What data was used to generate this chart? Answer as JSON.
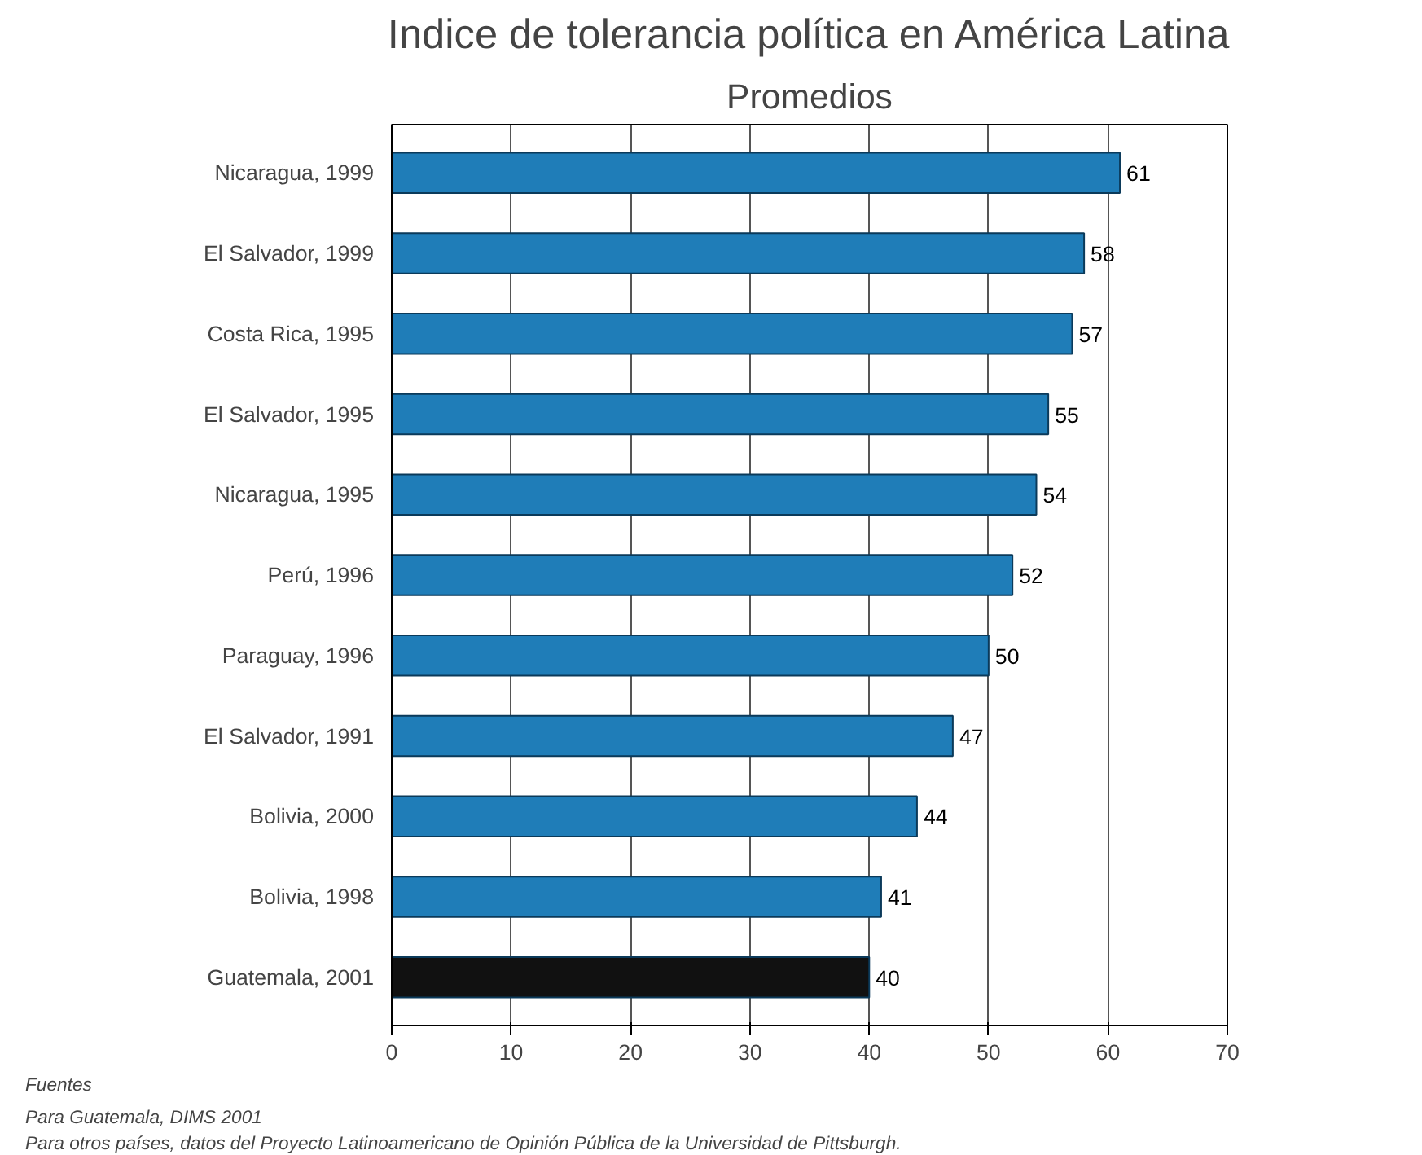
{
  "chart_data": {
    "type": "bar",
    "orientation": "horizontal",
    "title": "Indice de tolerancia política en América Latina",
    "subtitle": "Promedios",
    "categories": [
      "Nicaragua, 1999",
      "El Salvador, 1999",
      "Costa Rica, 1995",
      "El Salvador, 1995",
      "Nicaragua, 1995",
      "Perú, 1996",
      "Paraguay, 1996",
      "El Salvador, 1991",
      "Bolivia, 2000",
      "Bolivia, 1998",
      "Guatemala, 2001"
    ],
    "values": [
      61,
      58,
      57,
      55,
      54,
      52,
      50,
      47,
      44,
      41,
      40
    ],
    "colors": [
      "#1f7db8",
      "#1f7db8",
      "#1f7db8",
      "#1f7db8",
      "#1f7db8",
      "#1f7db8",
      "#1f7db8",
      "#1f7db8",
      "#1f7db8",
      "#1f7db8",
      "#111111"
    ],
    "xlim": [
      0,
      70
    ],
    "xticks": [
      0,
      10,
      20,
      30,
      40,
      50,
      60,
      70
    ],
    "grid": "x",
    "data_labels": true,
    "annotations": [
      "Fuentes",
      "Para Guatemala, DIMS 2001",
      "Para otros países, datos del Proyecto Latinoamericano de Opinión Pública de la Universidad de Pittsburgh."
    ]
  }
}
